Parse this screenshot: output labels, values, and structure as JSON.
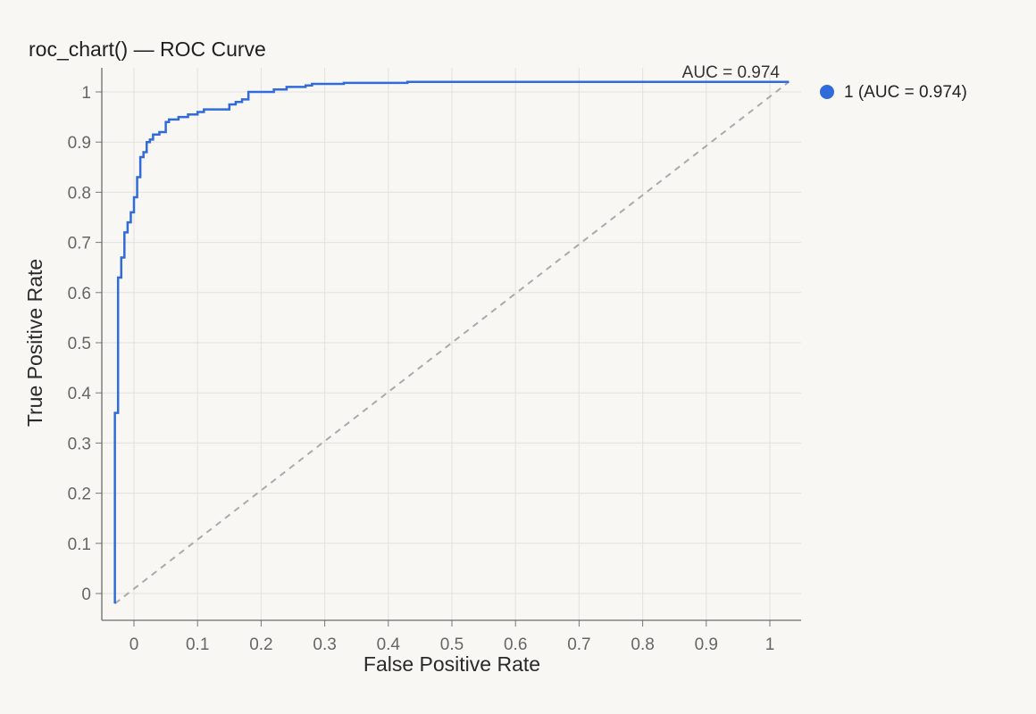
{
  "chart_data": {
    "type": "line",
    "title": "roc_chart() — ROC Curve",
    "xlabel": "False Positive Rate",
    "ylabel": "True Positive Rate",
    "xlim": [
      -0.03,
      1.03
    ],
    "ylim": [
      -0.02,
      1.02
    ],
    "x_ticks": [
      0,
      0.1,
      0.2,
      0.3,
      0.4,
      0.5,
      0.6,
      0.7,
      0.8,
      0.9,
      1
    ],
    "x_tick_labels": [
      "0",
      "0.1",
      "0.2",
      "0.3",
      "0.4",
      "0.5",
      "0.6",
      "0.7",
      "0.8",
      "0.9",
      "1"
    ],
    "y_ticks": [
      0,
      0.1,
      0.2,
      0.3,
      0.4,
      0.5,
      0.6,
      0.7,
      0.8,
      0.9,
      1
    ],
    "y_tick_labels": [
      "0",
      "0.1",
      "0.2",
      "0.3",
      "0.4",
      "0.5",
      "0.6",
      "0.7",
      "0.8",
      "0.9",
      "1"
    ],
    "grid": true,
    "legend_position": "top-right, outside plot",
    "annotation": "AUC = 0.974",
    "series": [
      {
        "name": "1 (AUC = 0.974)",
        "color": "#2f6bdb",
        "style": "step",
        "x": [
          -0.03,
          -0.03,
          -0.025,
          -0.025,
          -0.02,
          -0.02,
          -0.015,
          -0.015,
          -0.01,
          -0.01,
          -0.005,
          -0.005,
          0,
          0,
          0.005,
          0.005,
          0.01,
          0.01,
          0.015,
          0.015,
          0.02,
          0.02,
          0.025,
          0.025,
          0.03,
          0.03,
          0.04,
          0.04,
          0.05,
          0.05,
          0.055,
          0.055,
          0.07,
          0.07,
          0.085,
          0.085,
          0.1,
          0.1,
          0.11,
          0.11,
          0.15,
          0.15,
          0.16,
          0.16,
          0.17,
          0.17,
          0.18,
          0.18,
          0.22,
          0.22,
          0.24,
          0.24,
          0.27,
          0.27,
          0.28,
          0.28,
          0.33,
          0.33,
          0.43,
          0.43,
          1.03
        ],
        "y": [
          -0.02,
          0.36,
          0.36,
          0.63,
          0.63,
          0.67,
          0.67,
          0.72,
          0.72,
          0.74,
          0.74,
          0.76,
          0.76,
          0.79,
          0.79,
          0.83,
          0.83,
          0.87,
          0.87,
          0.88,
          0.88,
          0.9,
          0.9,
          0.905,
          0.905,
          0.915,
          0.915,
          0.92,
          0.92,
          0.94,
          0.94,
          0.945,
          0.945,
          0.95,
          0.95,
          0.955,
          0.955,
          0.96,
          0.96,
          0.965,
          0.965,
          0.975,
          0.975,
          0.98,
          0.98,
          0.985,
          0.985,
          1.0,
          1.0,
          1.005,
          1.005,
          1.01,
          1.01,
          1.013,
          1.013,
          1.016,
          1.016,
          1.018,
          1.018,
          1.02,
          1.02
        ]
      },
      {
        "name": "",
        "color": "#aaaaaa",
        "style": "dashed",
        "x": [
          -0.03,
          1.03
        ],
        "y": [
          -0.02,
          1.02
        ]
      }
    ]
  }
}
